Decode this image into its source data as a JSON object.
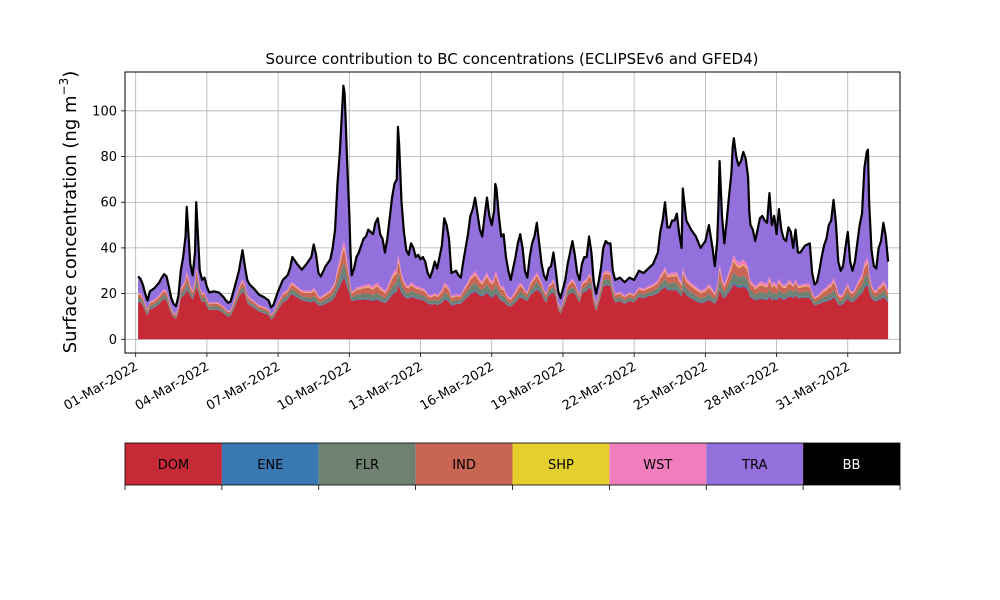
{
  "chart_data": {
    "type": "area",
    "title": "Source contribution to BC concentrations (ECLIPSEv6 and GFED4)",
    "ylabel_main": "Surface concentration (ng m",
    "ylabel_exp": "−3",
    "ylabel_close": ")",
    "xlabel": "",
    "ylim": [
      -6,
      117
    ],
    "yticks": [
      0,
      20,
      40,
      60,
      80,
      100
    ],
    "xlim": [
      -0.45,
      32.2
    ],
    "x_ticks": [
      {
        "label": "01-Mar-2022",
        "day": 0
      },
      {
        "label": "04-Mar-2022",
        "day": 3
      },
      {
        "label": "07-Mar-2022",
        "day": 6
      },
      {
        "label": "10-Mar-2022",
        "day": 9
      },
      {
        "label": "13-Mar-2022",
        "day": 12
      },
      {
        "label": "16-Mar-2022",
        "day": 15
      },
      {
        "label": "19-Mar-2022",
        "day": 18
      },
      {
        "label": "22-Mar-2022",
        "day": 21
      },
      {
        "label": "25-Mar-2022",
        "day": 24
      },
      {
        "label": "28-Mar-2022",
        "day": 27
      },
      {
        "label": "31-Mar-2022",
        "day": 30
      }
    ],
    "grid": true,
    "stacked": true,
    "series": [
      {
        "name": "DOM",
        "color": "#c62a36"
      },
      {
        "name": "ENE",
        "color": "#3a78b4"
      },
      {
        "name": "FLR",
        "color": "#6f8171"
      },
      {
        "name": "IND",
        "color": "#c96555"
      },
      {
        "name": "SHP",
        "color": "#e5cf2e"
      },
      {
        "name": "WST",
        "color": "#f07ebc"
      },
      {
        "name": "TRA",
        "color": "#9370db"
      },
      {
        "name": "BB",
        "color": "#000000"
      }
    ],
    "total_points": [
      [
        0.1,
        27.5
      ],
      [
        0.2,
        26.5
      ],
      [
        0.3,
        24
      ],
      [
        0.4,
        20
      ],
      [
        0.5,
        17
      ],
      [
        0.6,
        21
      ],
      [
        0.8,
        22.5
      ],
      [
        1.0,
        25
      ],
      [
        1.1,
        27
      ],
      [
        1.2,
        28.5
      ],
      [
        1.3,
        27.5
      ],
      [
        1.4,
        23
      ],
      [
        1.5,
        18
      ],
      [
        1.6,
        15.5
      ],
      [
        1.7,
        14.5
      ],
      [
        1.8,
        19
      ],
      [
        1.9,
        30
      ],
      [
        2.0,
        36
      ],
      [
        2.1,
        45
      ],
      [
        2.15,
        58
      ],
      [
        2.2,
        50
      ],
      [
        2.3,
        33
      ],
      [
        2.4,
        28
      ],
      [
        2.5,
        38
      ],
      [
        2.55,
        60
      ],
      [
        2.6,
        50
      ],
      [
        2.7,
        30
      ],
      [
        2.8,
        26
      ],
      [
        2.9,
        27
      ],
      [
        3.0,
        23
      ],
      [
        3.1,
        20.5
      ],
      [
        3.3,
        21
      ],
      [
        3.5,
        20.5
      ],
      [
        3.7,
        18.5
      ],
      [
        3.8,
        17
      ],
      [
        3.9,
        16
      ],
      [
        4.0,
        16.5
      ],
      [
        4.2,
        24
      ],
      [
        4.35,
        30
      ],
      [
        4.5,
        39
      ],
      [
        4.6,
        32
      ],
      [
        4.7,
        26
      ],
      [
        4.8,
        24
      ],
      [
        5.0,
        22
      ],
      [
        5.2,
        19.5
      ],
      [
        5.4,
        18.5
      ],
      [
        5.6,
        17
      ],
      [
        5.7,
        14
      ],
      [
        5.8,
        15
      ],
      [
        5.9,
        18
      ],
      [
        6.0,
        21
      ],
      [
        6.2,
        26
      ],
      [
        6.4,
        28
      ],
      [
        6.5,
        31
      ],
      [
        6.6,
        36
      ],
      [
        6.8,
        33
      ],
      [
        7.0,
        30.5
      ],
      [
        7.2,
        33
      ],
      [
        7.4,
        36
      ],
      [
        7.5,
        41.5
      ],
      [
        7.6,
        37
      ],
      [
        7.7,
        29
      ],
      [
        7.8,
        27.5
      ],
      [
        8.0,
        32
      ],
      [
        8.2,
        35
      ],
      [
        8.3,
        40
      ],
      [
        8.4,
        48
      ],
      [
        8.5,
        68
      ],
      [
        8.6,
        82
      ],
      [
        8.7,
        101
      ],
      [
        8.75,
        111
      ],
      [
        8.8,
        108
      ],
      [
        8.85,
        95
      ],
      [
        8.9,
        80
      ],
      [
        9.0,
        55
      ],
      [
        9.05,
        38
      ],
      [
        9.1,
        28
      ],
      [
        9.2,
        31
      ],
      [
        9.3,
        36
      ],
      [
        9.4,
        38
      ],
      [
        9.5,
        41
      ],
      [
        9.6,
        44
      ],
      [
        9.7,
        45
      ],
      [
        9.8,
        48
      ],
      [
        9.9,
        47
      ],
      [
        10.0,
        46
      ],
      [
        10.1,
        51
      ],
      [
        10.2,
        53
      ],
      [
        10.3,
        46
      ],
      [
        10.4,
        44
      ],
      [
        10.5,
        38
      ],
      [
        10.6,
        44
      ],
      [
        10.7,
        53
      ],
      [
        10.8,
        62
      ],
      [
        10.9,
        68
      ],
      [
        11.0,
        70
      ],
      [
        11.05,
        93
      ],
      [
        11.1,
        85
      ],
      [
        11.2,
        60
      ],
      [
        11.3,
        47
      ],
      [
        11.4,
        39
      ],
      [
        11.5,
        37
      ],
      [
        11.6,
        42
      ],
      [
        11.7,
        40
      ],
      [
        11.8,
        36
      ],
      [
        11.9,
        37
      ],
      [
        12.0,
        35
      ],
      [
        12.1,
        36
      ],
      [
        12.2,
        34
      ],
      [
        12.3,
        29
      ],
      [
        12.4,
        27
      ],
      [
        12.5,
        30
      ],
      [
        12.6,
        34
      ],
      [
        12.7,
        31
      ],
      [
        12.9,
        41
      ],
      [
        13.0,
        53
      ],
      [
        13.1,
        50
      ],
      [
        13.2,
        44
      ],
      [
        13.3,
        29
      ],
      [
        13.5,
        30
      ],
      [
        13.6,
        28
      ],
      [
        13.7,
        27
      ],
      [
        13.8,
        34
      ],
      [
        14.0,
        46
      ],
      [
        14.1,
        54
      ],
      [
        14.2,
        57
      ],
      [
        14.3,
        62
      ],
      [
        14.4,
        55
      ],
      [
        14.5,
        48
      ],
      [
        14.6,
        45
      ],
      [
        14.7,
        54
      ],
      [
        14.8,
        62
      ],
      [
        14.9,
        54
      ],
      [
        15.0,
        50
      ],
      [
        15.1,
        56
      ],
      [
        15.15,
        68
      ],
      [
        15.2,
        66
      ],
      [
        15.3,
        54
      ],
      [
        15.4,
        45
      ],
      [
        15.5,
        46
      ],
      [
        15.6,
        36
      ],
      [
        15.7,
        30
      ],
      [
        15.8,
        26
      ],
      [
        15.9,
        31
      ],
      [
        16.0,
        36
      ],
      [
        16.1,
        42
      ],
      [
        16.2,
        46
      ],
      [
        16.3,
        40
      ],
      [
        16.4,
        30
      ],
      [
        16.5,
        27
      ],
      [
        16.6,
        36
      ],
      [
        16.7,
        42
      ],
      [
        16.8,
        45
      ],
      [
        16.9,
        51
      ],
      [
        17.0,
        42
      ],
      [
        17.1,
        33
      ],
      [
        17.2,
        28
      ],
      [
        17.3,
        26
      ],
      [
        17.4,
        31
      ],
      [
        17.5,
        32
      ],
      [
        17.6,
        38
      ],
      [
        17.7,
        30
      ],
      [
        17.8,
        21
      ],
      [
        17.9,
        18
      ],
      [
        18.0,
        22
      ],
      [
        18.1,
        26
      ],
      [
        18.2,
        33
      ],
      [
        18.3,
        38
      ],
      [
        18.4,
        43
      ],
      [
        18.5,
        37
      ],
      [
        18.6,
        29
      ],
      [
        18.7,
        26
      ],
      [
        18.8,
        33
      ],
      [
        18.9,
        36
      ],
      [
        19.0,
        36
      ],
      [
        19.1,
        45
      ],
      [
        19.2,
        38
      ],
      [
        19.3,
        25
      ],
      [
        19.4,
        20
      ],
      [
        19.5,
        25
      ],
      [
        19.6,
        31
      ],
      [
        19.7,
        40
      ],
      [
        19.8,
        43
      ],
      [
        19.9,
        42
      ],
      [
        20.0,
        42
      ],
      [
        20.1,
        30
      ],
      [
        20.2,
        26
      ],
      [
        20.4,
        27
      ],
      [
        20.6,
        25
      ],
      [
        20.8,
        27
      ],
      [
        21.0,
        26
      ],
      [
        21.2,
        30
      ],
      [
        21.4,
        29
      ],
      [
        21.6,
        31
      ],
      [
        21.8,
        33
      ],
      [
        22.0,
        38
      ],
      [
        22.1,
        47
      ],
      [
        22.2,
        52
      ],
      [
        22.3,
        60
      ],
      [
        22.4,
        49
      ],
      [
        22.5,
        49
      ],
      [
        22.6,
        52
      ],
      [
        22.7,
        52
      ],
      [
        22.8,
        55
      ],
      [
        22.9,
        46
      ],
      [
        23.0,
        40
      ],
      [
        23.05,
        66
      ],
      [
        23.1,
        61
      ],
      [
        23.2,
        52
      ],
      [
        23.4,
        48
      ],
      [
        23.6,
        45
      ],
      [
        23.8,
        40
      ],
      [
        24.0,
        43
      ],
      [
        24.15,
        50
      ],
      [
        24.3,
        40
      ],
      [
        24.4,
        32
      ],
      [
        24.5,
        43
      ],
      [
        24.55,
        58
      ],
      [
        24.6,
        78
      ],
      [
        24.7,
        54
      ],
      [
        24.8,
        42
      ],
      [
        24.9,
        52
      ],
      [
        25.0,
        63
      ],
      [
        25.1,
        73
      ],
      [
        25.15,
        84
      ],
      [
        25.2,
        88
      ],
      [
        25.3,
        80
      ],
      [
        25.4,
        76
      ],
      [
        25.5,
        78
      ],
      [
        25.6,
        82
      ],
      [
        25.7,
        79
      ],
      [
        25.8,
        71
      ],
      [
        25.85,
        56
      ],
      [
        25.9,
        50
      ],
      [
        26.0,
        48
      ],
      [
        26.1,
        43
      ],
      [
        26.2,
        48
      ],
      [
        26.3,
        53
      ],
      [
        26.4,
        54
      ],
      [
        26.5,
        52
      ],
      [
        26.6,
        51
      ],
      [
        26.7,
        64
      ],
      [
        26.8,
        50
      ],
      [
        26.9,
        54
      ],
      [
        27.0,
        46
      ],
      [
        27.1,
        57
      ],
      [
        27.2,
        48
      ],
      [
        27.3,
        44
      ],
      [
        27.4,
        43
      ],
      [
        27.5,
        49
      ],
      [
        27.6,
        47
      ],
      [
        27.7,
        40
      ],
      [
        27.8,
        48
      ],
      [
        27.9,
        38
      ],
      [
        28.0,
        38
      ],
      [
        28.2,
        41
      ],
      [
        28.4,
        42
      ],
      [
        28.5,
        29
      ],
      [
        28.6,
        24
      ],
      [
        28.7,
        25
      ],
      [
        28.8,
        30
      ],
      [
        28.9,
        36
      ],
      [
        29.0,
        41
      ],
      [
        29.1,
        44
      ],
      [
        29.2,
        50
      ],
      [
        29.3,
        52
      ],
      [
        29.4,
        61
      ],
      [
        29.5,
        51
      ],
      [
        29.6,
        34
      ],
      [
        29.7,
        30
      ],
      [
        29.8,
        32
      ],
      [
        29.9,
        40
      ],
      [
        30.0,
        47
      ],
      [
        30.1,
        34
      ],
      [
        30.2,
        30
      ],
      [
        30.3,
        34
      ],
      [
        30.4,
        42
      ],
      [
        30.5,
        50
      ],
      [
        30.6,
        55
      ],
      [
        30.7,
        75
      ],
      [
        30.8,
        82
      ],
      [
        30.85,
        83
      ],
      [
        30.9,
        60
      ],
      [
        31.0,
        39
      ],
      [
        31.1,
        32
      ],
      [
        31.2,
        31
      ],
      [
        31.3,
        40
      ],
      [
        31.4,
        43
      ],
      [
        31.5,
        51
      ],
      [
        31.6,
        45
      ],
      [
        31.7,
        34
      ]
    ]
  },
  "legend": {
    "items": [
      "DOM",
      "ENE",
      "FLR",
      "IND",
      "SHP",
      "WST",
      "TRA",
      "BB"
    ]
  }
}
